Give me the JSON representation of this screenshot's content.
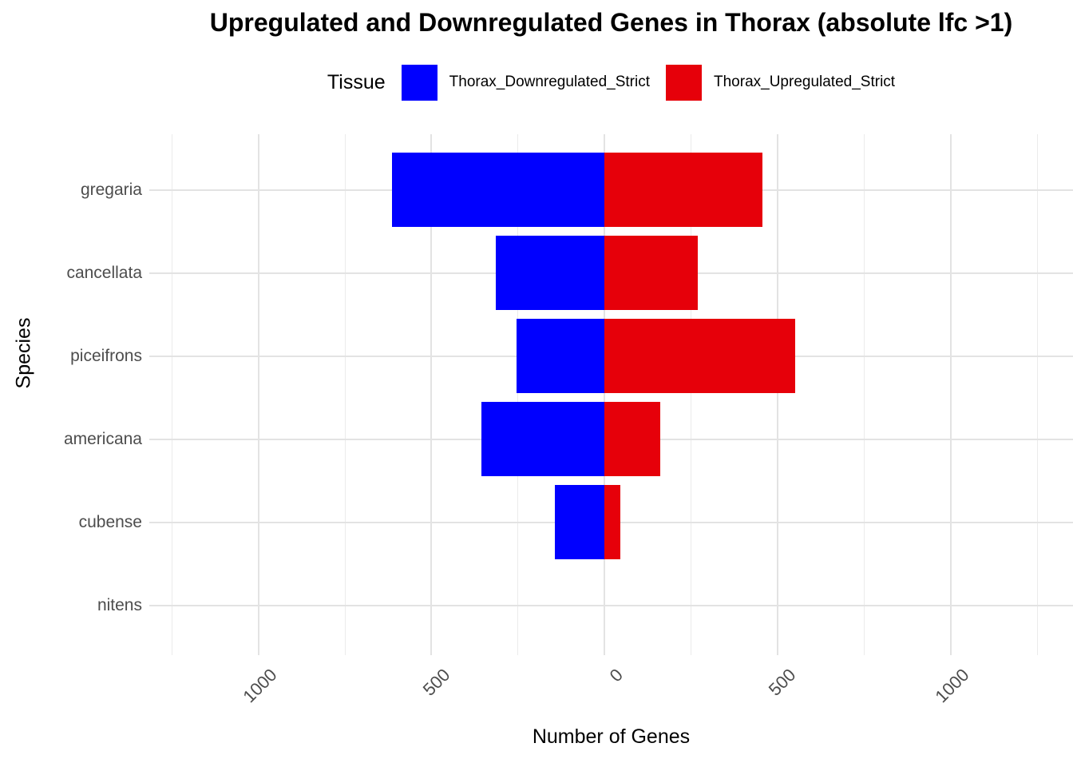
{
  "legend": {
    "title": "Tissue",
    "items": [
      {
        "label": "Thorax_Downregulated_Strict",
        "color": "#0000FF"
      },
      {
        "label": "Thorax_Upregulated_Strict",
        "color": "#E6000A"
      }
    ]
  },
  "colors": {
    "downregulated_blue": "#0000FF",
    "upregulated_red": "#E6000A",
    "grid_major": "#E3E3E3",
    "grid_minor": "#EBEBEB",
    "axis_text": "#4D4D4D",
    "title_text": "#000000"
  },
  "chart_data": {
    "type": "bar",
    "orientation": "horizontal-diverging",
    "title": "Upregulated and Downregulated Genes in Thorax (absolute lfc >1)",
    "xlabel": "Number of Genes",
    "ylabel": "Species",
    "categories": [
      "gregaria",
      "cancellata",
      "piceifrons",
      "americana",
      "cubense",
      "nitens"
    ],
    "series": [
      {
        "name": "Thorax_Downregulated_Strict",
        "color": "#0000FF",
        "values": [
          -615,
          -315,
          -255,
          -355,
          -143,
          0
        ]
      },
      {
        "name": "Thorax_Upregulated_Strict",
        "color": "#E6000A",
        "values": [
          455,
          270,
          550,
          160,
          45,
          0
        ]
      }
    ],
    "xlim": [
      -1315,
      1353
    ],
    "x_major_ticks": [
      -1000,
      -500,
      0,
      500,
      1000
    ],
    "x_tick_labels": [
      "1000",
      "500",
      "0",
      "500",
      "1000"
    ],
    "x_minor_ticks": [
      -1250,
      -750,
      -250,
      250,
      750,
      1250
    ],
    "grid": true,
    "legend_position": "top",
    "bar_width_fraction": 0.9
  }
}
